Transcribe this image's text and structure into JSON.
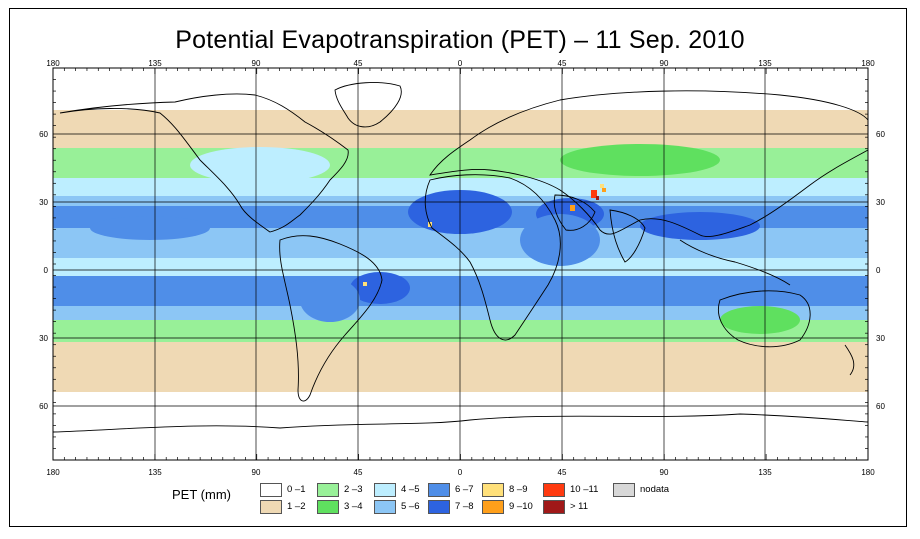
{
  "title": "Potential Evapotranspiration (PET) – 11 Sep. 2010",
  "map": {
    "longitude_ticks": [
      "180",
      "135",
      "90",
      "45",
      "0",
      "45",
      "90",
      "135",
      "180"
    ],
    "latitude_ticks": [
      "60",
      "30",
      "0",
      "30",
      "60"
    ],
    "ocean_background_color": "#ffffff",
    "coastline_color": "#000000",
    "graticule_color": "#000000"
  },
  "legend": {
    "label": "PET (mm)",
    "classes": [
      {
        "label": "0 –1",
        "color": "#ffffff"
      },
      {
        "label": "1 –2",
        "color": "#efd9b4"
      },
      {
        "label": "2 –3",
        "color": "#98f098"
      },
      {
        "label": "3 –4",
        "color": "#5fe05f"
      },
      {
        "label": "4 –5",
        "color": "#bdeeff"
      },
      {
        "label": "5 –6",
        "color": "#8cc6f5"
      },
      {
        "label": "6 –7",
        "color": "#4f8ee8"
      },
      {
        "label": "7 –8",
        "color": "#2d63e0"
      },
      {
        "label": "8 –9",
        "color": "#ffe07a"
      },
      {
        "label": "9 –10",
        "color": "#ff9f1a"
      },
      {
        "label": "10 –11",
        "color": "#ff3a10"
      },
      {
        "label": "> 11",
        "color": "#a01818"
      },
      {
        "label": "nodata",
        "color": "#d8d8d8"
      }
    ]
  }
}
